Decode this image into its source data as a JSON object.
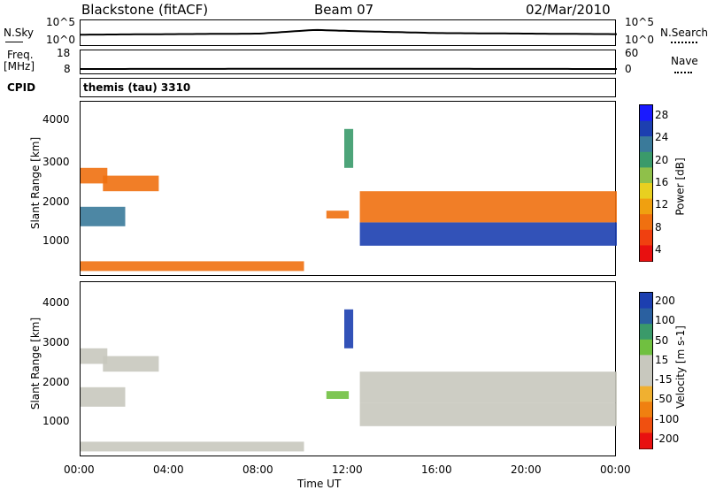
{
  "header": {
    "station": "Blackstone (fitACF)",
    "beam": "Beam 07",
    "date": "02/Mar/2010"
  },
  "top_panels": {
    "nsky_label": "N.Sky",
    "nsky_ticks": [
      "10^5",
      "10^0"
    ],
    "nsearch_label": "N.Search",
    "nsearch_ticks": [
      "10^5",
      "10^0"
    ],
    "freq_label_1": "Freq.",
    "freq_label_2": "[MHz]",
    "freq_ticks": [
      "18",
      "8"
    ],
    "nave_label": "Nave",
    "nave_ticks": [
      "60",
      "0"
    ],
    "cpid_label": "CPID",
    "cpid_value": "themis (tau) 3310"
  },
  "power_panel": {
    "ylabel": "Slant Range [km]",
    "yticks": [
      "4000",
      "3000",
      "2000",
      "1000"
    ],
    "colorbar_label": "Power [dB]",
    "colorbar_ticks": [
      "28",
      "24",
      "20",
      "16",
      "12",
      "8",
      "4"
    ],
    "colors": [
      "#1a1aff",
      "#1c3fb0",
      "#3a7a9a",
      "#3a9a6a",
      "#8fc04a",
      "#e8d020",
      "#f0a010",
      "#f07010",
      "#f04010",
      "#e81010"
    ]
  },
  "velocity_panel": {
    "ylabel": "Slant Range [km]",
    "yticks": [
      "4000",
      "3000",
      "2000",
      "1000"
    ],
    "colorbar_label": "Velocity [m s-1]",
    "colorbar_ticks": [
      "200",
      "100",
      "50",
      "15",
      "-15",
      "-50",
      "-100",
      "-200"
    ],
    "colors": [
      "#1c3fb0",
      "#2a60a0",
      "#3a9a6a",
      "#70c040",
      "#c8c8be",
      "#c8c8be",
      "#f0b030",
      "#f08010",
      "#f05010",
      "#e81010"
    ]
  },
  "xaxis": {
    "label": "Time UT",
    "ticks": [
      "00:00",
      "04:00",
      "08:00",
      "12:00",
      "16:00",
      "20:00",
      "00:00"
    ]
  },
  "chart_data": [
    {
      "type": "line",
      "name": "N.Sky / N.Search",
      "x": [
        0,
        4,
        8,
        10.5,
        12,
        16,
        20,
        24
      ],
      "series": [
        {
          "name": "N.Sky",
          "values": [
            2.3,
            2.4,
            2.5,
            3.2,
            3.0,
            2.6,
            2.5,
            2.4
          ]
        }
      ],
      "ylim": [
        0,
        5
      ]
    },
    {
      "type": "line",
      "name": "Freq./Nave",
      "x": [
        0,
        12,
        24
      ],
      "series": [
        {
          "name": "Freq.",
          "values": [
            10.5,
            10.6,
            10.5
          ]
        }
      ],
      "ylim": [
        8,
        18
      ]
    },
    {
      "type": "heatmap",
      "xlabel": "Time UT",
      "ylabel": "Slant Range [km]",
      "xlim": [
        0,
        24
      ],
      "ylim": [
        0,
        4500
      ],
      "colorbar": {
        "label": "Power [dB]",
        "range": [
          0,
          30
        ]
      },
      "regions": [
        {
          "t0": 0.0,
          "t1": 2.0,
          "r0": 1300,
          "r1": 1800,
          "value": 22
        },
        {
          "t0": 0.0,
          "t1": 1.2,
          "r0": 2400,
          "r1": 2800,
          "value": 6
        },
        {
          "t0": 1.0,
          "t1": 3.5,
          "r0": 2200,
          "r1": 2600,
          "value": 8
        },
        {
          "t0": 11.0,
          "t1": 12.0,
          "r0": 1500,
          "r1": 1700,
          "value": 6
        },
        {
          "t0": 11.8,
          "t1": 12.2,
          "r0": 2800,
          "r1": 3800,
          "value": 18
        },
        {
          "t0": 12.5,
          "t1": 24.0,
          "r0": 800,
          "r1": 1400,
          "value": 26
        },
        {
          "t0": 12.5,
          "t1": 24.0,
          "r0": 1400,
          "r1": 2200,
          "value": 8
        },
        {
          "t0": 0.0,
          "t1": 10.0,
          "r0": 150,
          "r1": 400,
          "value": 6
        }
      ]
    },
    {
      "type": "heatmap",
      "xlabel": "Time UT",
      "ylabel": "Slant Range [km]",
      "xlim": [
        0,
        24
      ],
      "ylim": [
        0,
        4500
      ],
      "colorbar": {
        "label": "Velocity [m s-1]",
        "range": [
          -200,
          200
        ]
      },
      "regions": [
        {
          "t0": 0.0,
          "t1": 2.0,
          "r0": 1300,
          "r1": 1800,
          "value": 0
        },
        {
          "t0": 0.0,
          "t1": 1.2,
          "r0": 2400,
          "r1": 2800,
          "value": 0
        },
        {
          "t0": 1.0,
          "t1": 3.5,
          "r0": 2200,
          "r1": 2600,
          "value": 0
        },
        {
          "t0": 11.0,
          "t1": 12.0,
          "r0": 1500,
          "r1": 1700,
          "value": 40
        },
        {
          "t0": 11.8,
          "t1": 12.2,
          "r0": 2800,
          "r1": 3800,
          "value": 220
        },
        {
          "t0": 12.5,
          "t1": 24.0,
          "r0": 800,
          "r1": 1400,
          "value": 0
        },
        {
          "t0": 12.5,
          "t1": 24.0,
          "r0": 1400,
          "r1": 2200,
          "value": 0
        },
        {
          "t0": 0.0,
          "t1": 10.0,
          "r0": 150,
          "r1": 400,
          "value": 20
        }
      ]
    }
  ]
}
